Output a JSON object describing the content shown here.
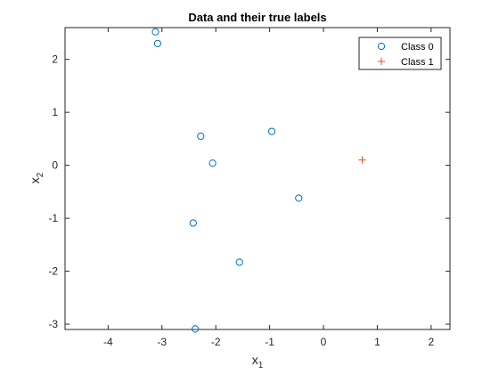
{
  "chart_data": {
    "type": "scatter",
    "title": "Data and their true labels",
    "xlabel": "x",
    "xlabel_sub": "1",
    "ylabel": "x",
    "ylabel_sub": "2",
    "xlim": [
      -4.8,
      2.35
    ],
    "ylim": [
      -3.1,
      2.6
    ],
    "xticks": [
      -4,
      -3,
      -2,
      -1,
      0,
      1,
      2
    ],
    "yticks": [
      -3,
      -2,
      -1,
      0,
      1,
      2
    ],
    "grid": false,
    "legend_position": "top-right",
    "series": [
      {
        "name": "Class 0",
        "marker": "circle",
        "color": "#0072BD",
        "points": [
          {
            "x": -3.12,
            "y": 2.52
          },
          {
            "x": -3.08,
            "y": 2.3
          },
          {
            "x": -2.28,
            "y": 0.55
          },
          {
            "x": -2.06,
            "y": 0.04
          },
          {
            "x": -0.96,
            "y": 0.64
          },
          {
            "x": -0.46,
            "y": -0.62
          },
          {
            "x": -2.42,
            "y": -1.09
          },
          {
            "x": -1.56,
            "y": -1.83
          },
          {
            "x": -2.38,
            "y": -3.09
          }
        ]
      },
      {
        "name": "Class 1",
        "marker": "plus",
        "color": "#D95319",
        "points": [
          {
            "x": 0.72,
            "y": 0.1
          }
        ]
      }
    ]
  }
}
